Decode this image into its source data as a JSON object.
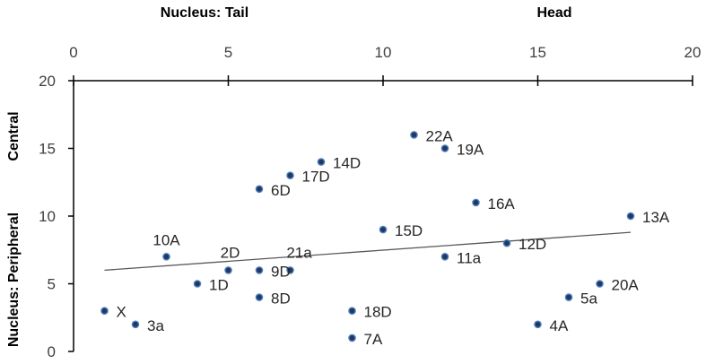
{
  "chart_data": {
    "type": "scatter",
    "x_axis_title_left": "Nucleus:  Tail",
    "x_axis_title_right": "Head",
    "y_axis_title_top": "Central",
    "y_axis_title_bottom": "Nucleus:  Peripheral",
    "xlim": [
      0,
      20
    ],
    "ylim": [
      0,
      20
    ],
    "x_ticks": [
      "0",
      "5",
      "10",
      "15",
      "20"
    ],
    "y_ticks": [
      "0",
      "5",
      "10",
      "15",
      "20"
    ],
    "x_axis_position": "top",
    "grid": false,
    "legend": "none",
    "colors": {
      "marker": "#1f3864",
      "marker_edge": "#4f81bd",
      "trendline": "#595959",
      "axis": "#000000"
    },
    "points": [
      {
        "label": "X",
        "x": 1,
        "y": 3
      },
      {
        "label": "3a",
        "x": 2,
        "y": 2
      },
      {
        "label": "10A",
        "x": 3,
        "y": 7
      },
      {
        "label": "1D",
        "x": 4,
        "y": 5
      },
      {
        "label": "2D",
        "x": 5,
        "y": 6
      },
      {
        "label": "9D",
        "x": 6,
        "y": 6
      },
      {
        "label": "8D",
        "x": 6,
        "y": 4
      },
      {
        "label": "6D",
        "x": 6,
        "y": 12
      },
      {
        "label": "21a",
        "x": 7,
        "y": 6
      },
      {
        "label": "17D",
        "x": 7,
        "y": 13
      },
      {
        "label": "14D",
        "x": 8,
        "y": 14
      },
      {
        "label": "18D",
        "x": 9,
        "y": 3
      },
      {
        "label": "7A",
        "x": 9,
        "y": 1
      },
      {
        "label": "15D",
        "x": 10,
        "y": 9
      },
      {
        "label": "22A",
        "x": 11,
        "y": 16
      },
      {
        "label": "19A",
        "x": 12,
        "y": 15
      },
      {
        "label": "11a",
        "x": 12,
        "y": 7
      },
      {
        "label": "16A",
        "x": 13,
        "y": 11
      },
      {
        "label": "12D",
        "x": 14,
        "y": 8
      },
      {
        "label": "4A",
        "x": 15,
        "y": 2
      },
      {
        "label": "5a",
        "x": 16,
        "y": 4
      },
      {
        "label": "20A",
        "x": 17,
        "y": 5
      },
      {
        "label": "13A",
        "x": 18,
        "y": 10
      }
    ],
    "trendline": {
      "type": "linear",
      "x": [
        1,
        18
      ],
      "y": [
        6.0,
        8.8
      ]
    }
  }
}
